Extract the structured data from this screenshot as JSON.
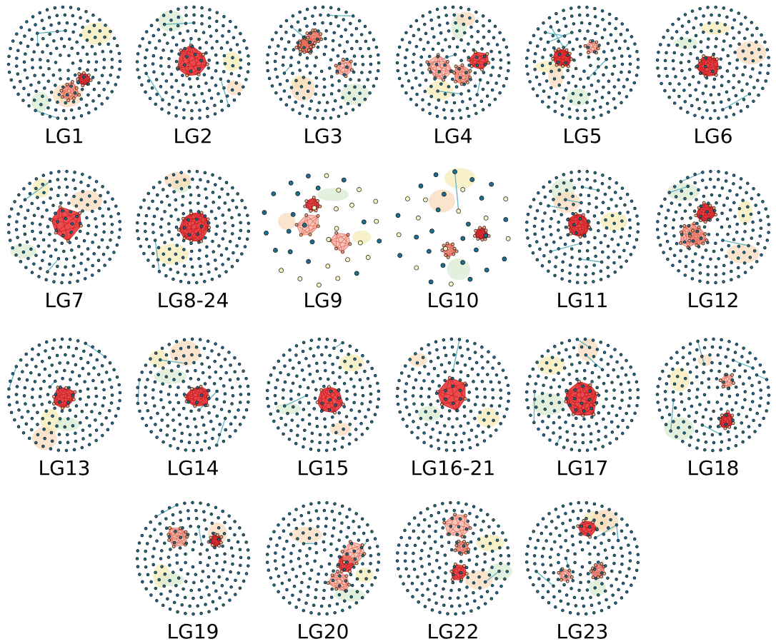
{
  "labels": [
    "LG1",
    "LG2",
    "LG3",
    "LG4",
    "LG5",
    "LG6",
    "LG7",
    "LG8-24",
    "LG9",
    "LG10",
    "LG11",
    "LG12",
    "LG13",
    "LG14",
    "LG15",
    "LG16-21",
    "LG17",
    "LG18",
    "LG19",
    "LG20",
    "LG22",
    "LG23"
  ]
}
